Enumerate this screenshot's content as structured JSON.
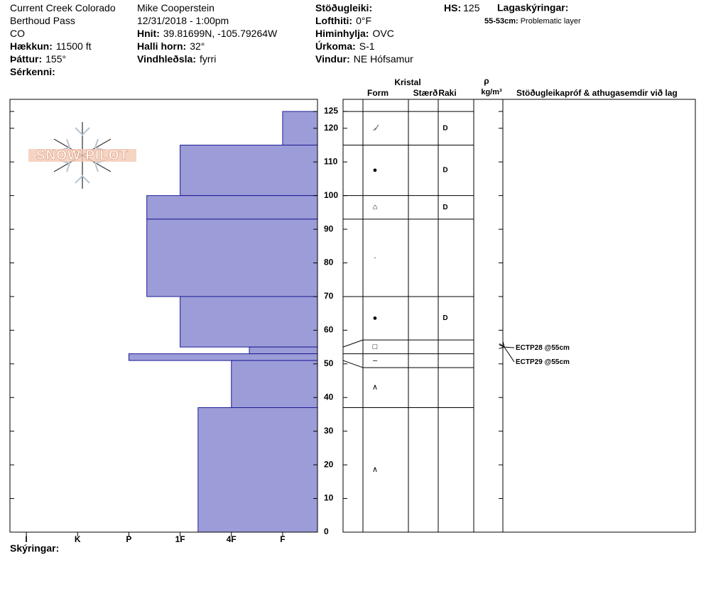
{
  "header": {
    "columns": [
      [
        {
          "text": "Current Creek Colorado"
        },
        {
          "text": "Berthoud Pass"
        },
        {
          "text": "CO"
        },
        {
          "label": "Hækkun:",
          "value": "11500 ft"
        },
        {
          "label": "Þáttur:",
          "value": "155°"
        },
        {
          "label": "Sérkenni:"
        }
      ],
      [
        {
          "text": "Mike Cooperstein"
        },
        {
          "text": "12/31/2018 - 1:00pm"
        },
        {
          "label": "Hnit:",
          "value": "39.81699N, -105.79264W"
        },
        {
          "label": "Halli horn:",
          "value": "32°"
        },
        {
          "label": "Vindhleðsla:",
          "value": "fyrri"
        }
      ],
      [
        {
          "label": "Stöðugleiki:"
        },
        {
          "label": "Lofthiti:",
          "value": "0°F"
        },
        {
          "label": "Himinhylja:",
          "value": "OVC"
        },
        {
          "label": "Úrkoma:",
          "value": "S-1"
        },
        {
          "label": "Vindur:",
          "value": "NE Hófsamur"
        }
      ]
    ],
    "hs": {
      "label": "HS:",
      "value": 125
    },
    "legend_title": "Lagaskýringar:",
    "notes": [
      {
        "label": "55-53cm:",
        "value": "Problematic layer"
      }
    ]
  },
  "logo": "SNOW PILOT",
  "footer": "Skýringar:",
  "chart_data": {
    "type": "snowprofile",
    "color": "#9c9cd8",
    "edge_color": "#1c1c96",
    "ylim": [
      0,
      128.6
    ],
    "yticks": [
      0,
      10,
      20,
      30,
      40,
      50,
      60,
      70,
      80,
      90,
      100,
      110,
      120,
      125
    ],
    "xlim": [
      6.32,
      0.32
    ],
    "xticks": [
      {
        "value": 6,
        "label": "I"
      },
      {
        "value": 5,
        "label": "K"
      },
      {
        "value": 4,
        "label": "P"
      },
      {
        "value": 3,
        "label": "1F"
      },
      {
        "value": 2,
        "label": "4F"
      },
      {
        "value": 1,
        "label": "F"
      }
    ],
    "columns": {
      "crystal": "Kristal",
      "form": "Form",
      "size": "Stærð",
      "moisture": "Raki",
      "density": "ρ",
      "density_unit": "kg/m³",
      "comments": "Stöðugleikapróf & athugasemdir við lag"
    },
    "layers": [
      {
        "top": 125,
        "bottom": 115,
        "hardness": 1,
        "form": "⸝⁄",
        "moisture": "D"
      },
      {
        "top": 115,
        "bottom": 100,
        "hardness": 3,
        "form": "●",
        "moisture": "D"
      },
      {
        "top": 100,
        "bottom": 93,
        "hardness": 3.65,
        "form": "⌂",
        "moisture": "D"
      },
      {
        "top": 93,
        "bottom": 70,
        "hardness": 3.65,
        "form": "·"
      },
      {
        "top": 70,
        "bottom": 55,
        "hardness": 3,
        "form": "●",
        "moisture": "D"
      },
      {
        "top": 55,
        "bottom": 53,
        "hardness": 1.65,
        "form": "□"
      },
      {
        "top": 53,
        "bottom": 51,
        "hardness": 4,
        "form": "–"
      },
      {
        "top": 51,
        "bottom": 37,
        "hardness": 2,
        "form": "∧"
      },
      {
        "top": 37,
        "bottom": 0,
        "hardness": 2.65,
        "form": "∧"
      }
    ],
    "tests": [
      {
        "label": "ECTP28 @55cm",
        "height": 55
      },
      {
        "label": "ECTP29 @55cm",
        "height": 55
      }
    ]
  }
}
